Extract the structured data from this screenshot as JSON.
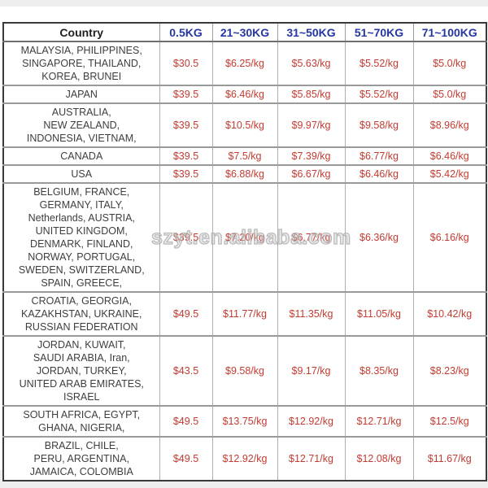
{
  "watermark": {
    "text": "szyt.en.alibaba.com"
  },
  "colors": {
    "header_blue": "#2636a2",
    "value_red": "#c33b32",
    "country_gray": "#3e3e3e",
    "border_gray": "#9a9a9a",
    "frame_dark": "#3a3a3a"
  },
  "table": {
    "columns": [
      "Country",
      "0.5KG",
      "21~30KG",
      "31~50KG",
      "51~70KG",
      "71~100KG"
    ],
    "rows": [
      {
        "country_lines": [
          "MALAYSIA, PHILIPPINES,",
          "SINGAPORE, THAILAND,",
          "KOREA, BRUNEI"
        ],
        "values": [
          "$30.5",
          "$6.25/kg",
          "$5.63/kg",
          "$5.52/kg",
          "$5.0/kg"
        ]
      },
      {
        "country_lines": [
          "JAPAN"
        ],
        "values": [
          "$39.5",
          "$6.46/kg",
          "$5.85/kg",
          "$5.52/kg",
          "$5.0/kg"
        ]
      },
      {
        "country_lines": [
          "AUSTRALIA,",
          "NEW ZEALAND,",
          "INDONESIA, VIETNAM,"
        ],
        "values": [
          "$39.5",
          "$10.5/kg",
          "$9.97/kg",
          "$9.58/kg",
          "$8.96/kg"
        ]
      },
      {
        "country_lines": [
          "CANADA"
        ],
        "values": [
          "$39.5",
          "$7.5/kg",
          "$7.39/kg",
          "$6.77/kg",
          "$6.46/kg"
        ]
      },
      {
        "country_lines": [
          "USA"
        ],
        "values": [
          "$39.5",
          "$6.88/kg",
          "$6.67/kg",
          "$6.46/kg",
          "$5.42/kg"
        ]
      },
      {
        "country_lines": [
          "BELGIUM, FRANCE,",
          "GERMANY, ITALY,",
          "Netherlands, AUSTRIA,",
          "UNITED KINGDOM,",
          "DENMARK, FINLAND,",
          "NORWAY, PORTUGAL,",
          "SWEDEN, SWITZERLAND,",
          "SPAIN, GREECE,"
        ],
        "values": [
          "$39.5",
          "$7.20/kg",
          "$6.77/kg",
          "$6.36/kg",
          "$6.16/kg"
        ]
      },
      {
        "country_lines": [
          "CROATIA, GEORGIA,",
          "KAZAKHSTAN, UKRAINE,",
          "RUSSIAN FEDERATION"
        ],
        "values": [
          "$49.5",
          "$11.77/kg",
          "$11.35/kg",
          "$11.05/kg",
          "$10.42/kg"
        ]
      },
      {
        "country_lines": [
          "JORDAN, KUWAIT,",
          "SAUDI ARABIA, Iran,",
          "JORDAN, TURKEY,",
          "UNITED ARAB EMIRATES,",
          "ISRAEL"
        ],
        "values": [
          "$43.5",
          "$9.58/kg",
          "$9.17/kg",
          "$8.35/kg",
          "$8.23/kg"
        ]
      },
      {
        "country_lines": [
          "SOUTH AFRICA, EGYPT,",
          "GHANA, NIGERIA,"
        ],
        "values": [
          "$49.5",
          "$13.75/kg",
          "$12.92/kg",
          "$12.71/kg",
          "$12.5/kg"
        ]
      },
      {
        "country_lines": [
          "BRAZIL, CHILE,",
          "PERU, ARGENTINA,",
          "JAMAICA, COLOMBIA"
        ],
        "values": [
          "$49.5",
          "$12.92/kg",
          "$12.71/kg",
          "$12.08/kg",
          "$11.67/kg"
        ]
      }
    ]
  }
}
